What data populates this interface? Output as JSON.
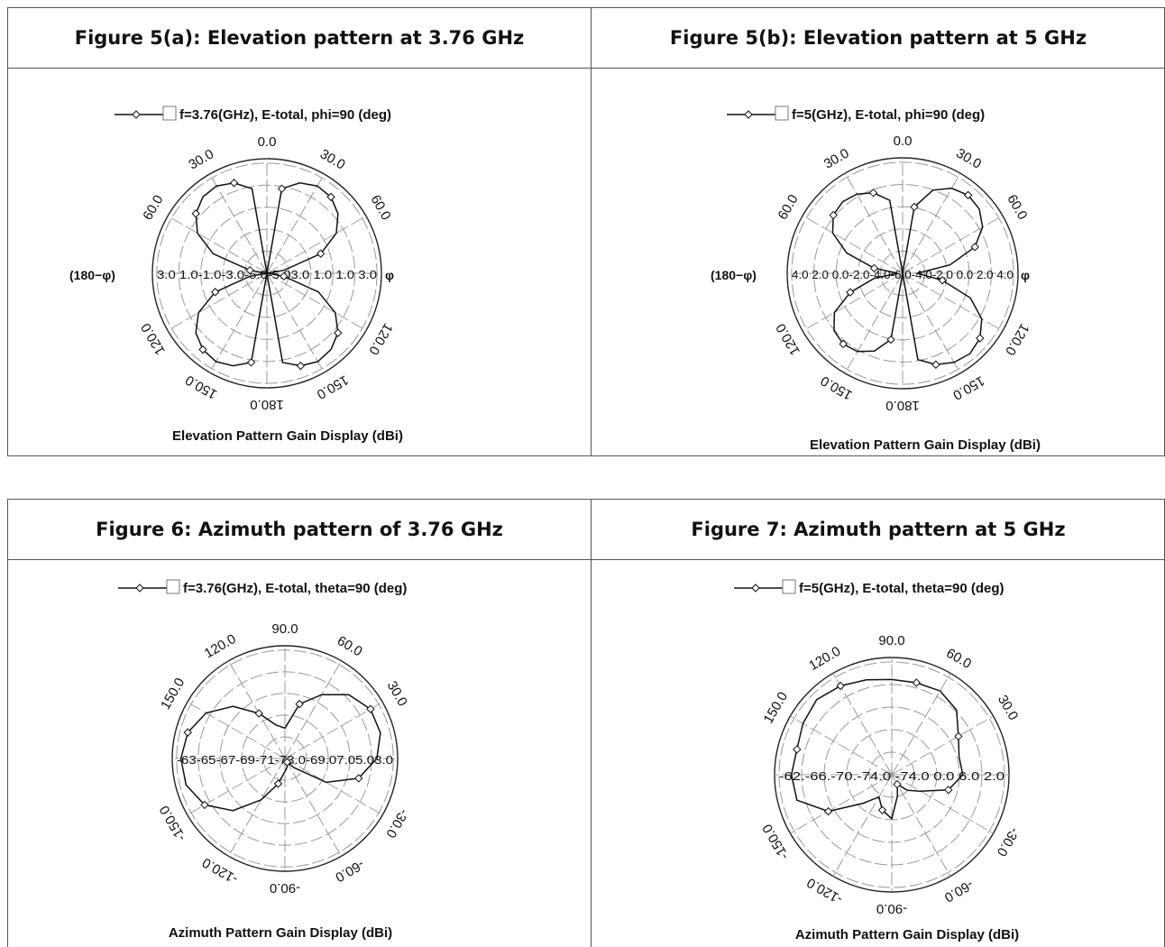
{
  "figures": [
    {
      "id": "fig5a",
      "title": "Figure 5(a): Elevation pattern at 3.76 GHz",
      "legend": "f=3.76(GHz), E-total, phi=90 (deg)",
      "caption": "Elevation Pattern Gain Display (dBi)",
      "angle_labels": [
        {
          "text": "0.0",
          "angle": 0,
          "flip": false
        },
        {
          "text": "30.0",
          "angle": 30,
          "flip": false
        },
        {
          "text": "60.0",
          "angle": 60,
          "flip": false
        },
        {
          "text": "120.0",
          "angle": 120,
          "flip": true
        },
        {
          "text": "150.0",
          "angle": 150,
          "flip": true
        },
        {
          "text": "180.0",
          "angle": 180,
          "flip": true
        },
        {
          "text": "150.0",
          "angle": 210,
          "flip": true
        },
        {
          "text": "120.0",
          "angle": 240,
          "flip": true
        },
        {
          "text": "60.0",
          "angle": 300,
          "flip": false
        },
        {
          "text": "30.0",
          "angle": 330,
          "flip": false
        }
      ],
      "radial_tick_row": "3.0 1.0-1.0-3.0-5.0-5.03.0 1.0 1.0 3.0",
      "left_label": "(180−φ)",
      "right_label": "φ",
      "chart_data": {
        "type": "polar",
        "angle_convention": "clockwise-from-top",
        "r_range": [
          -7,
          3
        ],
        "series": [
          {
            "name": "f=3.76(GHz), E-total, phi=90 (deg)",
            "points": [
              [
                0,
                -7
              ],
              [
                10,
                0.5
              ],
              [
                20,
                1.4
              ],
              [
                30,
                1.8
              ],
              [
                40,
                1.7
              ],
              [
                50,
                1.1
              ],
              [
                60,
                0.0
              ],
              [
                70,
                -2.0
              ],
              [
                80,
                -5.5
              ],
              [
                90,
                -7
              ],
              [
                100,
                -5.5
              ],
              [
                110,
                -2.2
              ],
              [
                120,
                -0.1
              ],
              [
                130,
                1.1
              ],
              [
                140,
                1.7
              ],
              [
                150,
                1.9
              ],
              [
                160,
                1.6
              ],
              [
                170,
                0.9
              ],
              [
                180,
                -7
              ],
              [
                190,
                0.9
              ],
              [
                200,
                1.6
              ],
              [
                210,
                1.9
              ],
              [
                220,
                1.7
              ],
              [
                230,
                1.1
              ],
              [
                240,
                -0.1
              ],
              [
                250,
                -2.2
              ],
              [
                260,
                -5.5
              ],
              [
                270,
                -7
              ],
              [
                280,
                -5.5
              ],
              [
                290,
                -2.0
              ],
              [
                300,
                0.0
              ],
              [
                310,
                1.1
              ],
              [
                320,
                1.7
              ],
              [
                330,
                1.8
              ],
              [
                340,
                1.4
              ],
              [
                350,
                0.5
              ]
            ]
          }
        ]
      }
    },
    {
      "id": "fig5b",
      "title": "Figure 5(b): Elevation pattern at 5 GHz",
      "legend": "f=5(GHz), E-total, phi=90 (deg)",
      "caption": "Elevation Pattern Gain Display (dBi)",
      "angle_labels": [
        {
          "text": "0.0",
          "angle": 0,
          "flip": false
        },
        {
          "text": "30.0",
          "angle": 30,
          "flip": false
        },
        {
          "text": "60.0",
          "angle": 60,
          "flip": false
        },
        {
          "text": "120.0",
          "angle": 120,
          "flip": true
        },
        {
          "text": "150.0",
          "angle": 150,
          "flip": true
        },
        {
          "text": "180.0",
          "angle": 180,
          "flip": true
        },
        {
          "text": "150.0",
          "angle": 210,
          "flip": true
        },
        {
          "text": "120.0",
          "angle": 240,
          "flip": true
        },
        {
          "text": "60.0",
          "angle": 300,
          "flip": false
        },
        {
          "text": "30.0",
          "angle": 330,
          "flip": false
        }
      ],
      "radial_tick_row": "4.0 2.0 0.0-2.0-4.0-6.0-4.0-2.0 0.0 2.0 4.0",
      "left_label": "(180−φ)",
      "right_label": "φ",
      "chart_data": {
        "type": "polar",
        "angle_convention": "clockwise-from-top",
        "r_range": [
          -8,
          4
        ],
        "series": [
          {
            "name": "f=5(GHz), E-total, phi=90 (deg)",
            "points": [
              [
                0,
                -8
              ],
              [
                10,
                -1.0
              ],
              [
                20,
                1.2
              ],
              [
                30,
                2.2
              ],
              [
                40,
                2.6
              ],
              [
                50,
                2.4
              ],
              [
                60,
                1.6
              ],
              [
                70,
                0.0
              ],
              [
                80,
                -3.0
              ],
              [
                90,
                -6.5
              ],
              [
                100,
                -3.8
              ],
              [
                110,
                -0.5
              ],
              [
                120,
                1.5
              ],
              [
                130,
                2.5
              ],
              [
                140,
                2.9
              ],
              [
                150,
                2.7
              ],
              [
                160,
                2.1
              ],
              [
                170,
                1.1
              ],
              [
                180,
                -8
              ],
              [
                190,
                -1.0
              ],
              [
                200,
                0.6
              ],
              [
                210,
                1.4
              ],
              [
                220,
                1.6
              ],
              [
                230,
                1.3
              ],
              [
                240,
                0.2
              ],
              [
                250,
                -2.2
              ],
              [
                260,
                -5.0
              ],
              [
                270,
                -7.5
              ],
              [
                280,
                -5.0
              ],
              [
                290,
                -1.8
              ],
              [
                300,
                0.4
              ],
              [
                310,
                1.4
              ],
              [
                320,
                1.7
              ],
              [
                330,
                1.5
              ],
              [
                340,
                0.9
              ],
              [
                350,
                -0.3
              ]
            ]
          }
        ]
      }
    },
    {
      "id": "fig6",
      "title": "Figure 6: Azimuth pattern of 3.76 GHz",
      "legend": "f=3.76(GHz), E-total, theta=90 (deg)",
      "caption": "Azimuth Pattern Gain Display  (dBi)",
      "angle_labels": [
        {
          "text": "90.0",
          "angle": 0,
          "flip": false
        },
        {
          "text": "60.0",
          "angle": 30,
          "flip": false
        },
        {
          "text": "30.0",
          "angle": 60,
          "flip": false
        },
        {
          "text": "-30.0",
          "angle": 120,
          "flip": true
        },
        {
          "text": "-60.0",
          "angle": 150,
          "flip": true
        },
        {
          "text": "-90.0",
          "angle": 180,
          "flip": true
        },
        {
          "text": "-120.0",
          "angle": 210,
          "flip": true
        },
        {
          "text": "-150.0",
          "angle": 240,
          "flip": true
        },
        {
          "text": "150.0",
          "angle": 300,
          "flip": false
        },
        {
          "text": "120.0",
          "angle": 330,
          "flip": false
        }
      ],
      "radial_tick_row": "-63-65-67-69-71-73.0-69.07.05.03.0",
      "left_label": "",
      "right_label": "",
      "chart_data": {
        "type": "polar",
        "angle_convention": "clockwise-from-top",
        "r_range": [
          -75,
          -62
        ],
        "series": [
          {
            "name": "f=3.76(GHz), E-total, theta=90 (deg)",
            "points": [
              [
                0,
                -71.5
              ],
              [
                15,
                -68.5
              ],
              [
                30,
                -66.5
              ],
              [
                45,
                -64.6
              ],
              [
                60,
                -63.6
              ],
              [
                75,
                -63.6
              ],
              [
                90,
                -64.4
              ],
              [
                105,
                -66.2
              ],
              [
                120,
                -69.5
              ],
              [
                135,
                -73.5
              ],
              [
                150,
                -74.5
              ],
              [
                165,
                -74.0
              ],
              [
                180,
                -73.5
              ],
              [
                195,
                -72.0
              ],
              [
                210,
                -69.5
              ],
              [
                225,
                -66.5
              ],
              [
                240,
                -64.3
              ],
              [
                255,
                -63.2
              ],
              [
                270,
                -63.0
              ],
              [
                285,
                -63.4
              ],
              [
                300,
                -64.5
              ],
              [
                315,
                -66.5
              ],
              [
                330,
                -69.0
              ],
              [
                345,
                -71.0
              ]
            ]
          }
        ]
      }
    },
    {
      "id": "fig7",
      "title": "Figure 7: Azimuth pattern at 5 GHz",
      "legend": "f=5(GHz), E-total, theta=90 (deg)",
      "caption": "Azimuth Pattern Gain Display (dBi)",
      "angle_labels": [
        {
          "text": "90.0",
          "angle": 0,
          "flip": false
        },
        {
          "text": "60.0",
          "angle": 30,
          "flip": false
        },
        {
          "text": "30.0",
          "angle": 60,
          "flip": false
        },
        {
          "text": "-30.0",
          "angle": 120,
          "flip": true
        },
        {
          "text": "-60.0",
          "angle": 150,
          "flip": true
        },
        {
          "text": "-90.0",
          "angle": 180,
          "flip": true
        },
        {
          "text": "-120.0",
          "angle": 210,
          "flip": true
        },
        {
          "text": "-150.0",
          "angle": 240,
          "flip": true
        },
        {
          "text": "150.0",
          "angle": 300,
          "flip": false
        },
        {
          "text": "120.0",
          "angle": 330,
          "flip": false
        }
      ],
      "radial_tick_row": "-62.-66.-70.-74.0  -74.0 0.0 6.0 2.0",
      "left_label": "",
      "right_label": "",
      "chart_data": {
        "type": "polar",
        "angle_convention": "clockwise-from-top",
        "r_range": [
          -78,
          -62
        ],
        "series": [
          {
            "name": "f=5(GHz), E-total, theta=90 (deg)",
            "points": [
              [
                0,
                -65.0
              ],
              [
                15,
                -65.0
              ],
              [
                30,
                -64.8
              ],
              [
                45,
                -65.5
              ],
              [
                60,
                -67.5
              ],
              [
                75,
                -68.5
              ],
              [
                90,
                -68.3
              ],
              [
                105,
                -70.0
              ],
              [
                120,
                -73.5
              ],
              [
                135,
                -75.0
              ],
              [
                150,
                -76.5
              ],
              [
                165,
                -75.0
              ],
              [
                180,
                -72.0
              ],
              [
                195,
                -73.0
              ],
              [
                210,
                -74.5
              ],
              [
                225,
                -72.5
              ],
              [
                240,
                -68.0
              ],
              [
                255,
                -64.6
              ],
              [
                270,
                -64.3
              ],
              [
                285,
                -64.6
              ],
              [
                300,
                -64.0
              ],
              [
                315,
                -63.5
              ],
              [
                330,
                -64.0
              ],
              [
                345,
                -64.6
              ]
            ]
          }
        ]
      }
    }
  ]
}
